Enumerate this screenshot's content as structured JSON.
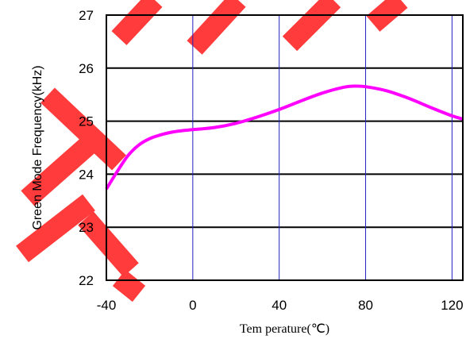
{
  "chart_data": {
    "type": "line",
    "title": "",
    "xlabel": "Tem perature(℃)",
    "ylabel": "Green Mode Frequency(kHz)",
    "xlim": [
      -40,
      125
    ],
    "ylim": [
      22,
      27
    ],
    "x_ticks": [
      "-40",
      "0",
      "40",
      "80",
      "120"
    ],
    "y_ticks": [
      "22",
      "23",
      "24",
      "25",
      "26",
      "27"
    ],
    "x_tick_values": [
      -40,
      0,
      40,
      80,
      120
    ],
    "y_tick_values": [
      22,
      23,
      24,
      25,
      26,
      27
    ],
    "grid": true,
    "series": [
      {
        "color": "#ff00ff",
        "x": [
          -40,
          -35,
          -30,
          -25,
          -20,
          -15,
          -10,
          -5,
          0,
          10,
          20,
          30,
          40,
          50,
          60,
          70,
          75,
          80,
          90,
          100,
          110,
          120,
          125
        ],
        "y": [
          23.72,
          24.05,
          24.35,
          24.55,
          24.67,
          24.74,
          24.79,
          24.82,
          24.84,
          24.88,
          24.96,
          25.08,
          25.22,
          25.38,
          25.53,
          25.64,
          25.66,
          25.65,
          25.57,
          25.43,
          25.26,
          25.1,
          25.04
        ]
      }
    ],
    "watermark_color": "#ff3b3b"
  }
}
